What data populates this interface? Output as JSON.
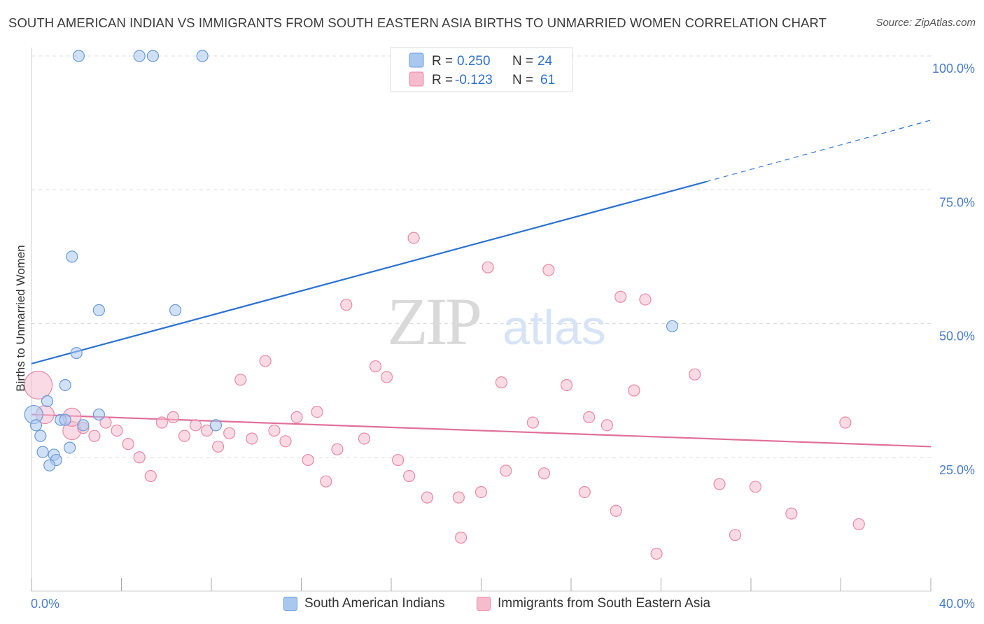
{
  "title": "SOUTH AMERICAN INDIAN VS IMMIGRANTS FROM SOUTH EASTERN ASIA BIRTHS TO UNMARRIED WOMEN CORRELATION CHART",
  "source": "Source: ZipAtlas.com",
  "watermark": {
    "zip": "ZIP",
    "atlas": "atlas"
  },
  "colors": {
    "blue_fill": "#a9c8f0",
    "blue_stroke": "#6a9ad8",
    "blue_line": "#2a72d0",
    "pink_fill": "#f6bccd",
    "pink_stroke": "#e88aa6",
    "pink_line": "#e0709a",
    "grid": "#dddddd",
    "tick_text": "#4a7cc9"
  },
  "legend": {
    "rows": [
      {
        "r_label": "R =",
        "r_value": "0.250",
        "n_label": "N =",
        "n_value": "24"
      },
      {
        "r_label": "R =",
        "r_value": "-0.123",
        "n_label": "N =",
        "n_value": "61"
      }
    ]
  },
  "bottom_legend": [
    "South American Indians",
    "Immigrants from South Eastern Asia"
  ],
  "chart_data": {
    "type": "scatter",
    "xlabel": "",
    "ylabel": "Births to Unmarried Women",
    "xlim": [
      0,
      40
    ],
    "ylim": [
      0,
      100
    ],
    "x_tick_labels": [
      "0.0%",
      "40.0%"
    ],
    "y_tick_labels": [
      "100.0%",
      "75.0%",
      "50.0%",
      "25.0%"
    ],
    "y_ticks": [
      100,
      75,
      50,
      25
    ],
    "x_minor_ticks": [
      0,
      4,
      8,
      12,
      16,
      20,
      24,
      28,
      32,
      36,
      40
    ],
    "grid": true,
    "series": [
      {
        "name": "South American Indians",
        "r": 0.25,
        "n": 24,
        "trend": {
          "x0": 0,
          "y0": 42.5,
          "x1": 30,
          "y1": 76.5,
          "dash_to_x": 40,
          "dash_to_y": 88
        },
        "points": [
          {
            "x": 2.1,
            "y": 100,
            "s": 1
          },
          {
            "x": 4.8,
            "y": 100,
            "s": 1
          },
          {
            "x": 5.4,
            "y": 100,
            "s": 1
          },
          {
            "x": 7.6,
            "y": 100,
            "s": 1
          },
          {
            "x": 1.8,
            "y": 62.5,
            "s": 1
          },
          {
            "x": 3.0,
            "y": 52.5,
            "s": 1
          },
          {
            "x": 6.4,
            "y": 52.5,
            "s": 1
          },
          {
            "x": 28.5,
            "y": 49.5,
            "s": 1
          },
          {
            "x": 2.0,
            "y": 44.5,
            "s": 1
          },
          {
            "x": 1.5,
            "y": 38.5,
            "s": 1
          },
          {
            "x": 0.7,
            "y": 35.5,
            "s": 1
          },
          {
            "x": 0.1,
            "y": 33.0,
            "s": 2
          },
          {
            "x": 3.0,
            "y": 33.0,
            "s": 1
          },
          {
            "x": 1.3,
            "y": 32.0,
            "s": 1
          },
          {
            "x": 2.3,
            "y": 31.0,
            "s": 1
          },
          {
            "x": 0.2,
            "y": 31.0,
            "s": 1
          },
          {
            "x": 8.2,
            "y": 31.0,
            "s": 1
          },
          {
            "x": 0.4,
            "y": 29.0,
            "s": 1
          },
          {
            "x": 1.7,
            "y": 26.8,
            "s": 1
          },
          {
            "x": 0.5,
            "y": 26.0,
            "s": 1
          },
          {
            "x": 1.0,
            "y": 25.5,
            "s": 1
          },
          {
            "x": 1.1,
            "y": 24.5,
            "s": 1
          },
          {
            "x": 0.8,
            "y": 23.5,
            "s": 1
          },
          {
            "x": 1.5,
            "y": 32.0,
            "s": 1
          }
        ]
      },
      {
        "name": "Immigrants from South Eastern Asia",
        "r": -0.123,
        "n": 61,
        "trend": {
          "x0": 0,
          "y0": 33.0,
          "x1": 40,
          "y1": 27.0
        },
        "points": [
          {
            "x": 0.3,
            "y": 38.5,
            "s": 3
          },
          {
            "x": 0.6,
            "y": 33.0,
            "s": 2
          },
          {
            "x": 1.8,
            "y": 30.0,
            "s": 2
          },
          {
            "x": 1.8,
            "y": 32.5,
            "s": 2
          },
          {
            "x": 17.0,
            "y": 66.0,
            "s": 1
          },
          {
            "x": 20.3,
            "y": 60.5,
            "s": 1
          },
          {
            "x": 23.0,
            "y": 60.0,
            "s": 1
          },
          {
            "x": 14.0,
            "y": 53.5,
            "s": 1
          },
          {
            "x": 26.2,
            "y": 55.0,
            "s": 1
          },
          {
            "x": 27.3,
            "y": 54.5,
            "s": 1
          },
          {
            "x": 10.4,
            "y": 43.0,
            "s": 1
          },
          {
            "x": 15.3,
            "y": 42.0,
            "s": 1
          },
          {
            "x": 15.8,
            "y": 40.0,
            "s": 1
          },
          {
            "x": 9.3,
            "y": 39.5,
            "s": 1
          },
          {
            "x": 20.9,
            "y": 39.0,
            "s": 1
          },
          {
            "x": 23.8,
            "y": 38.5,
            "s": 1
          },
          {
            "x": 29.5,
            "y": 40.5,
            "s": 1
          },
          {
            "x": 26.8,
            "y": 37.5,
            "s": 1
          },
          {
            "x": 12.7,
            "y": 33.5,
            "s": 1
          },
          {
            "x": 11.8,
            "y": 32.5,
            "s": 1
          },
          {
            "x": 6.3,
            "y": 32.5,
            "s": 1
          },
          {
            "x": 3.3,
            "y": 31.5,
            "s": 1
          },
          {
            "x": 5.8,
            "y": 31.5,
            "s": 1
          },
          {
            "x": 7.3,
            "y": 31.0,
            "s": 1
          },
          {
            "x": 22.3,
            "y": 31.5,
            "s": 1
          },
          {
            "x": 24.8,
            "y": 32.5,
            "s": 1
          },
          {
            "x": 25.6,
            "y": 31.0,
            "s": 1
          },
          {
            "x": 36.2,
            "y": 31.5,
            "s": 1
          },
          {
            "x": 2.3,
            "y": 30.5,
            "s": 1
          },
          {
            "x": 3.8,
            "y": 30.0,
            "s": 1
          },
          {
            "x": 7.8,
            "y": 30.0,
            "s": 1
          },
          {
            "x": 10.8,
            "y": 30.0,
            "s": 1
          },
          {
            "x": 2.8,
            "y": 29.0,
            "s": 1
          },
          {
            "x": 6.8,
            "y": 29.0,
            "s": 1
          },
          {
            "x": 8.8,
            "y": 29.5,
            "s": 1
          },
          {
            "x": 9.8,
            "y": 28.5,
            "s": 1
          },
          {
            "x": 11.3,
            "y": 28.0,
            "s": 1
          },
          {
            "x": 14.8,
            "y": 28.5,
            "s": 1
          },
          {
            "x": 4.3,
            "y": 27.5,
            "s": 1
          },
          {
            "x": 8.3,
            "y": 27.0,
            "s": 1
          },
          {
            "x": 13.6,
            "y": 26.5,
            "s": 1
          },
          {
            "x": 4.8,
            "y": 25.0,
            "s": 1
          },
          {
            "x": 12.3,
            "y": 24.5,
            "s": 1
          },
          {
            "x": 16.3,
            "y": 24.5,
            "s": 1
          },
          {
            "x": 21.1,
            "y": 22.5,
            "s": 1
          },
          {
            "x": 22.8,
            "y": 22.0,
            "s": 1
          },
          {
            "x": 5.3,
            "y": 21.5,
            "s": 1
          },
          {
            "x": 13.1,
            "y": 20.5,
            "s": 1
          },
          {
            "x": 16.8,
            "y": 21.5,
            "s": 1
          },
          {
            "x": 30.6,
            "y": 20.0,
            "s": 1
          },
          {
            "x": 32.2,
            "y": 19.5,
            "s": 1
          },
          {
            "x": 20.0,
            "y": 18.5,
            "s": 1
          },
          {
            "x": 24.6,
            "y": 18.5,
            "s": 1
          },
          {
            "x": 17.6,
            "y": 17.5,
            "s": 1
          },
          {
            "x": 19.0,
            "y": 17.5,
            "s": 1
          },
          {
            "x": 26.0,
            "y": 15.0,
            "s": 1
          },
          {
            "x": 33.8,
            "y": 14.5,
            "s": 1
          },
          {
            "x": 36.8,
            "y": 12.5,
            "s": 1
          },
          {
            "x": 31.3,
            "y": 10.5,
            "s": 1
          },
          {
            "x": 19.1,
            "y": 10.0,
            "s": 1
          },
          {
            "x": 27.8,
            "y": 7.0,
            "s": 1
          }
        ]
      }
    ]
  }
}
